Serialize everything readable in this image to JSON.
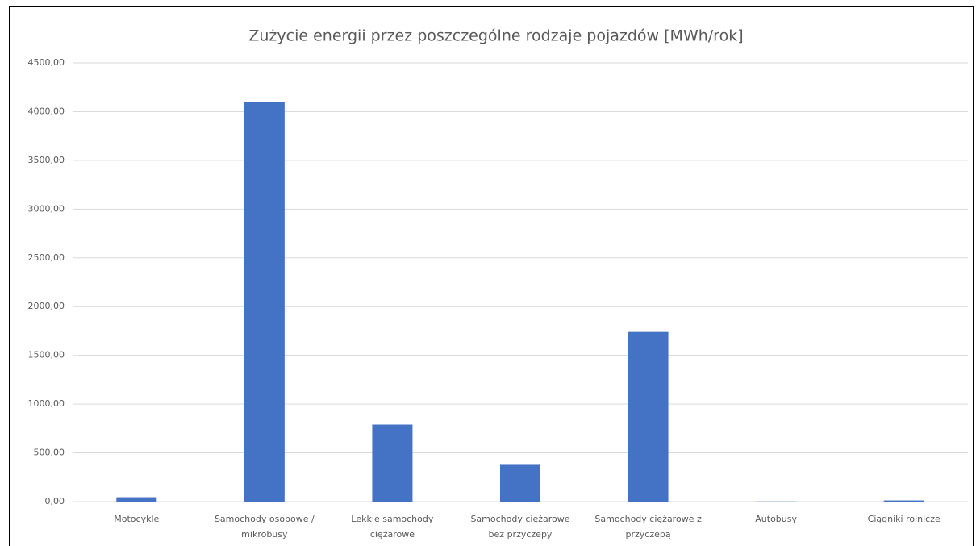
{
  "chart_data": {
    "type": "bar",
    "title": "Zużycie energii przez poszczególne rodzaje pojazdów [MWh/rok]",
    "categories": [
      [
        "Motocykle"
      ],
      [
        "Samochody osobowe /",
        "mikrobusy"
      ],
      [
        "Lekkie samochody",
        "ciężarowe"
      ],
      [
        "Samochody ciężarowe",
        "bez przyczepy"
      ],
      [
        "Samochody ciężarowe z",
        "przyczepą"
      ],
      [
        "Autobusy"
      ],
      [
        "Ciągniki rolnicze"
      ]
    ],
    "values": [
      45,
      4100,
      790,
      385,
      1740,
      2,
      12
    ],
    "color": "#4472c4",
    "ylim": [
      0,
      4500
    ],
    "yticks": [
      {
        "value": 0,
        "label": "0,00"
      },
      {
        "value": 500,
        "label": "500,00"
      },
      {
        "value": 1000,
        "label": "1000,00"
      },
      {
        "value": 1500,
        "label": "1500,00"
      },
      {
        "value": 2000,
        "label": "2000,00"
      },
      {
        "value": 2500,
        "label": "2500,00"
      },
      {
        "value": 3000,
        "label": "3000,00"
      },
      {
        "value": 3500,
        "label": "3500,00"
      },
      {
        "value": 4000,
        "label": "4000,00"
      },
      {
        "value": 4500,
        "label": "4500,00"
      }
    ],
    "grid": true
  }
}
